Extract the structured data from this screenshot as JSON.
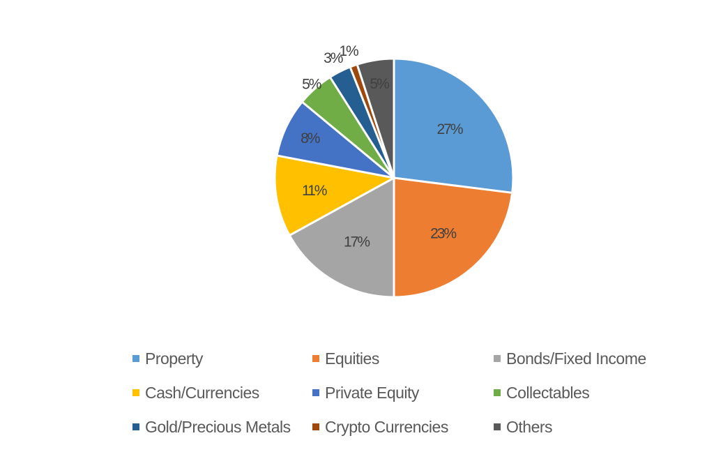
{
  "chart_data": {
    "type": "pie",
    "title": "",
    "start_angle_deg": 0,
    "direction": "clockwise",
    "legend_position": "bottom",
    "slices": [
      {
        "name": "Property",
        "value": 27,
        "label": "27%",
        "color": "#5B9BD5"
      },
      {
        "name": "Equities",
        "value": 23,
        "label": "23%",
        "color": "#ED7D31"
      },
      {
        "name": "Bonds/Fixed Income",
        "value": 17,
        "label": "17%",
        "color": "#A5A5A5"
      },
      {
        "name": "Cash/Currencies",
        "value": 11,
        "label": "11%",
        "color": "#FFC000"
      },
      {
        "name": "Private Equity",
        "value": 8,
        "label": "8%",
        "color": "#4472C4"
      },
      {
        "name": "Collectables",
        "value": 5,
        "label": "5%",
        "color": "#70AD47"
      },
      {
        "name": "Gold/Precious Metals",
        "value": 3,
        "label": "3%",
        "color": "#255E91"
      },
      {
        "name": "Crypto Currencies",
        "value": 1,
        "label": "1%",
        "color": "#9E480E"
      },
      {
        "name": "Others",
        "value": 5,
        "label": "5%",
        "color": "#595959"
      }
    ]
  }
}
